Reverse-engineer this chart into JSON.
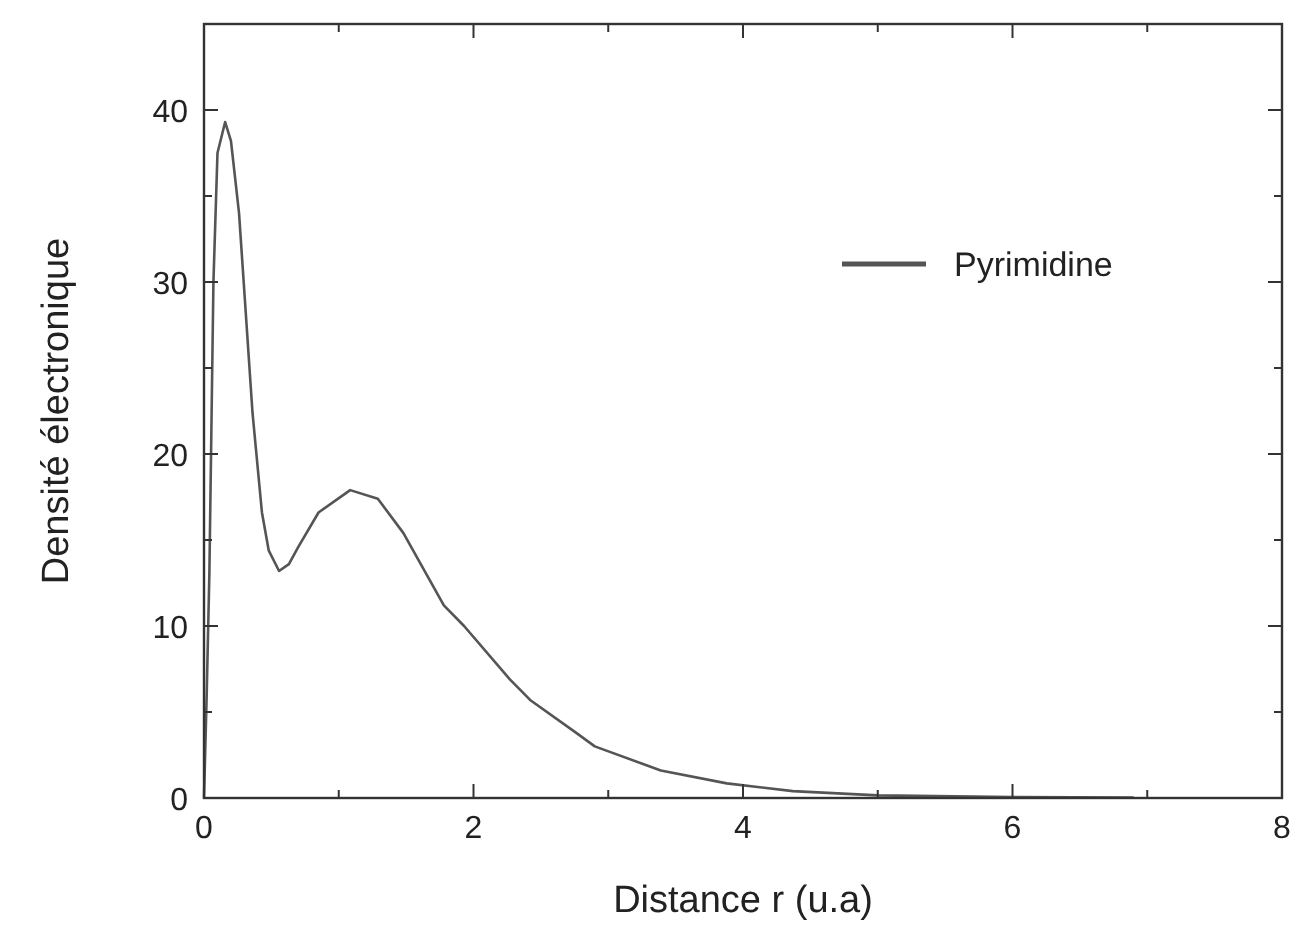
{
  "chart_data": {
    "type": "line",
    "xlabel": "Distance r  (u.a)",
    "ylabel": "Densité électronique",
    "series": [
      {
        "name": "Pyrimidine",
        "color": "#555555",
        "x": [
          0,
          0.02,
          0.04,
          0.07,
          0.1,
          0.157,
          0.2,
          0.26,
          0.36,
          0.43,
          0.48,
          0.557,
          0.63,
          0.7,
          0.85,
          1.085,
          1.29,
          1.48,
          1.78,
          1.93,
          2.27,
          2.42,
          2.76,
          2.9,
          3.39,
          3.88,
          4.37,
          5,
          6,
          6.9
        ],
        "values": [
          0,
          6,
          13.1,
          30,
          37.5,
          39.3,
          38.2,
          34,
          22.4,
          16.6,
          14.4,
          13.2,
          13.6,
          14.6,
          16.6,
          17.9,
          17.4,
          15.4,
          11.2,
          10.0,
          6.9,
          5.7,
          3.8,
          3.0,
          1.6,
          0.85,
          0.4,
          0.15,
          0.05,
          0.02
        ]
      }
    ],
    "xlim": [
      0,
      8
    ],
    "ylim": [
      0,
      45
    ],
    "xticks": [
      0,
      {
        "value": 1,
        "label": null
      },
      2,
      {
        "value": 3,
        "label": null
      },
      4,
      {
        "value": 5,
        "label": null
      },
      6,
      {
        "value": 7,
        "label": null
      },
      8
    ],
    "yticks": [
      0,
      {
        "value": 5,
        "label": null
      },
      10,
      {
        "value": 15,
        "label": null
      },
      20,
      {
        "value": 25,
        "label": null
      },
      30,
      {
        "value": 35,
        "label": null
      },
      40,
      {
        "value": 45,
        "label": null
      }
    ],
    "legend": "top right",
    "grid": false,
    "marker": "none",
    "line_style": "solid"
  }
}
